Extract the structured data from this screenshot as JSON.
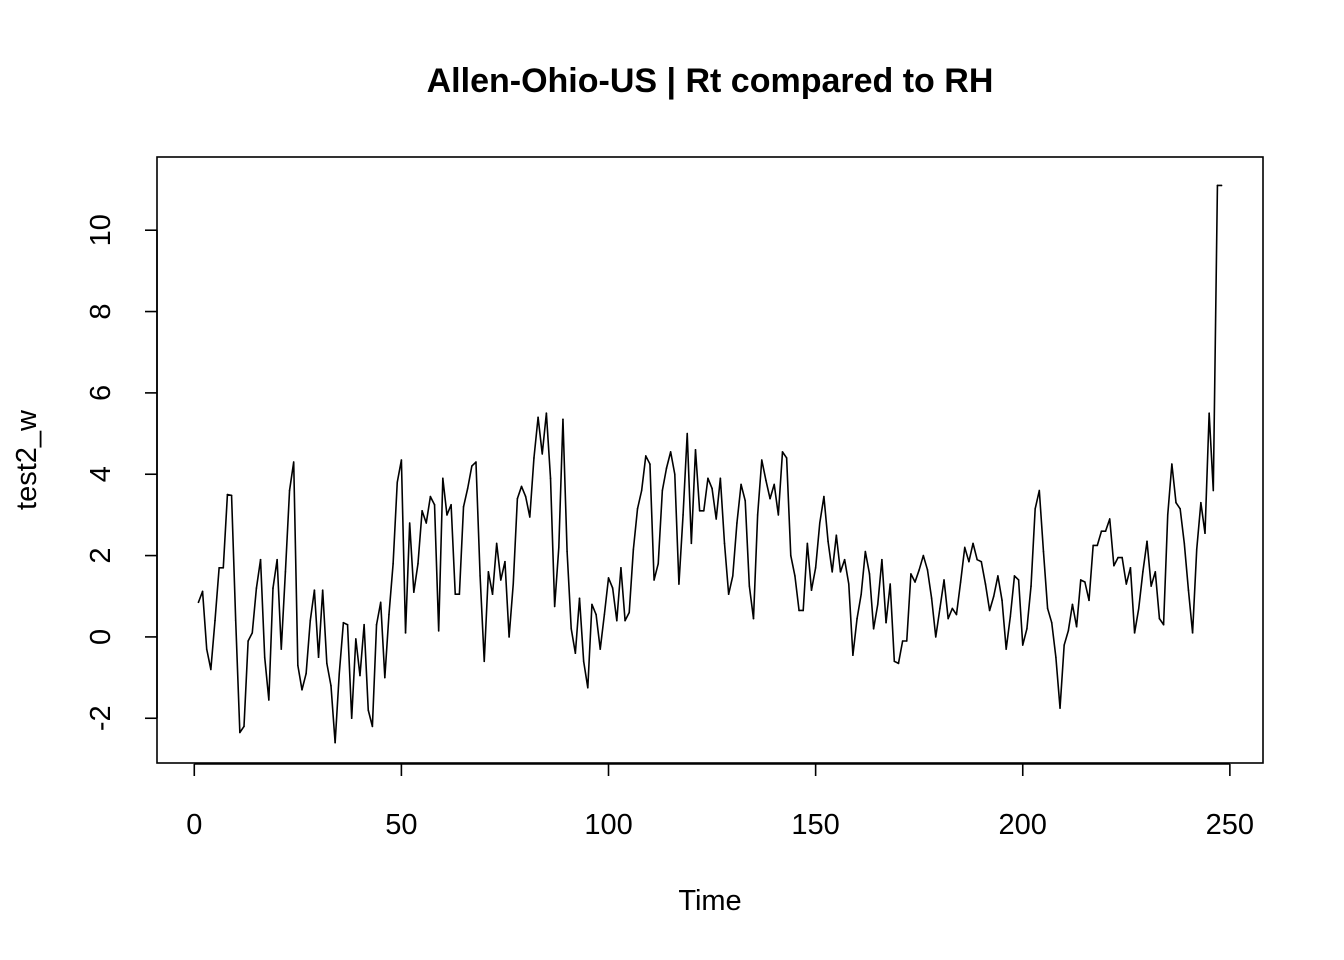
{
  "chart_data": {
    "type": "line",
    "title": "Allen-Ohio-US | Rt compared to RH",
    "xlabel": "Time",
    "ylabel": "test2_w",
    "xlim": [
      -9,
      258
    ],
    "ylim": [
      -3.1,
      11.8
    ],
    "x_ticks": [
      0,
      50,
      100,
      150,
      200,
      250
    ],
    "y_ticks": [
      -2,
      0,
      2,
      4,
      6,
      8,
      10
    ],
    "grid": false,
    "legend": "none",
    "x_start": 1,
    "series": [
      {
        "color": "#000000",
        "values": [
          0.85,
          1.12,
          -0.3,
          -0.8,
          0.4,
          1.7,
          1.7,
          3.5,
          3.48,
          0.4,
          -2.35,
          -2.2,
          -0.1,
          0.1,
          1.2,
          1.9,
          -0.5,
          -1.55,
          1.2,
          1.9,
          -0.3,
          1.6,
          3.6,
          4.3,
          -0.7,
          -1.3,
          -0.9,
          0.4,
          1.15,
          -0.5,
          1.15,
          -0.65,
          -1.2,
          -2.6,
          -0.9,
          0.35,
          0.3,
          -2.0,
          -0.05,
          -0.95,
          0.3,
          -1.8,
          -2.2,
          0.3,
          0.85,
          -1.0,
          0.55,
          1.8,
          3.8,
          4.35,
          0.1,
          2.8,
          1.1,
          1.8,
          3.1,
          2.8,
          3.45,
          3.25,
          0.15,
          3.9,
          3.0,
          3.25,
          1.05,
          1.05,
          3.2,
          3.65,
          4.2,
          4.3,
          1.5,
          -0.6,
          1.6,
          1.05,
          2.3,
          1.4,
          1.85,
          0.0,
          1.3,
          3.4,
          3.7,
          3.45,
          2.95,
          4.4,
          5.4,
          4.5,
          5.5,
          3.9,
          0.75,
          2.2,
          5.35,
          2.1,
          0.2,
          -0.4,
          0.95,
          -0.6,
          -1.25,
          0.8,
          0.55,
          -0.3,
          0.55,
          1.45,
          1.2,
          0.4,
          1.7,
          0.4,
          0.6,
          2.15,
          3.15,
          3.6,
          4.45,
          4.25,
          1.4,
          1.8,
          3.6,
          4.15,
          4.55,
          4.0,
          1.3,
          3.0,
          5.0,
          2.3,
          4.6,
          3.1,
          3.1,
          3.9,
          3.65,
          2.9,
          3.9,
          2.3,
          1.05,
          1.5,
          2.8,
          3.75,
          3.35,
          1.25,
          0.45,
          3.0,
          4.35,
          3.85,
          3.4,
          3.75,
          3.0,
          4.55,
          4.4,
          2.0,
          1.5,
          0.65,
          0.65,
          2.3,
          1.15,
          1.7,
          2.8,
          3.45,
          2.35,
          1.6,
          2.5,
          1.6,
          1.9,
          1.3,
          -0.45,
          0.45,
          1.05,
          2.1,
          1.55,
          0.2,
          0.8,
          1.9,
          0.35,
          1.3,
          -0.6,
          -0.65,
          -0.1,
          -0.1,
          1.55,
          1.35,
          1.65,
          2.0,
          1.65,
          0.95,
          0.0,
          0.7,
          1.4,
          0.45,
          0.7,
          0.55,
          1.35,
          2.2,
          1.85,
          2.3,
          1.9,
          1.85,
          1.3,
          0.65,
          1.0,
          1.5,
          0.9,
          -0.3,
          0.5,
          1.5,
          1.4,
          -0.2,
          0.2,
          1.25,
          3.15,
          3.6,
          2.1,
          0.7,
          0.35,
          -0.5,
          -1.75,
          -0.2,
          0.15,
          0.8,
          0.25,
          1.4,
          1.35,
          0.9,
          2.25,
          2.25,
          2.6,
          2.6,
          2.9,
          1.75,
          1.95,
          1.95,
          1.3,
          1.7,
          0.1,
          0.7,
          1.6,
          2.35,
          1.25,
          1.6,
          0.45,
          0.3,
          3.0,
          4.25,
          3.3,
          3.15,
          2.3,
          1.15,
          0.1,
          2.15,
          3.3,
          2.55,
          5.5,
          3.6,
          11.1,
          11.1
        ]
      }
    ]
  }
}
